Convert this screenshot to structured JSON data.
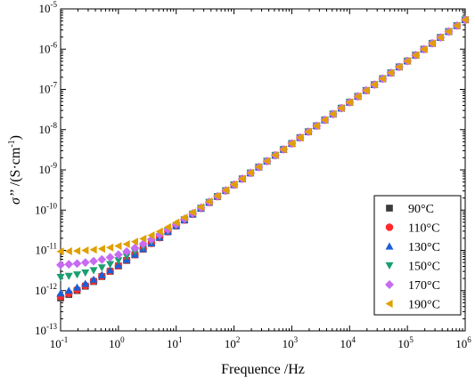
{
  "chart_data": {
    "type": "scatter",
    "x_scale": "log",
    "y_scale": "log",
    "xlabel": "Frequence /Hz",
    "ylabel": {
      "main": "σ’’",
      "unit": "/(S·cm",
      "unit_exp": "-1",
      "unit_close": ")"
    },
    "xlim": [
      0.1,
      1000000
    ],
    "ylim": [
      1e-13,
      1e-05
    ],
    "x_ticks": [
      {
        "base": "10",
        "exp": "-1"
      },
      {
        "base": "10",
        "exp": "0"
      },
      {
        "base": "10",
        "exp": "1"
      },
      {
        "base": "10",
        "exp": "2"
      },
      {
        "base": "10",
        "exp": "3"
      },
      {
        "base": "10",
        "exp": "4"
      },
      {
        "base": "10",
        "exp": "5"
      },
      {
        "base": "10",
        "exp": "6"
      }
    ],
    "y_ticks": [
      {
        "base": "10",
        "exp": "-13"
      },
      {
        "base": "10",
        "exp": "-12"
      },
      {
        "base": "10",
        "exp": "-11"
      },
      {
        "base": "10",
        "exp": "-10"
      },
      {
        "base": "10",
        "exp": "-9"
      },
      {
        "base": "10",
        "exp": "-8"
      },
      {
        "base": "10",
        "exp": "-7"
      },
      {
        "base": "10",
        "exp": "-6"
      },
      {
        "base": "10",
        "exp": "-5"
      }
    ],
    "legend_position": "bottom-right",
    "grid": false,
    "series": [
      {
        "name": "90°C",
        "marker": "square",
        "color": "#3a3a3a",
        "low_freq_plateau": 3e-13
      },
      {
        "name": "110°C",
        "marker": "circle",
        "color": "#ff2a2a",
        "low_freq_plateau": 3.5e-13
      },
      {
        "name": "130°C",
        "marker": "triangle-up",
        "color": "#1a5fd6",
        "low_freq_plateau": 5e-13
      },
      {
        "name": "150°C",
        "marker": "triangle-down",
        "color": "#1aa070",
        "low_freq_plateau": 1.8e-12
      },
      {
        "name": "170°C",
        "marker": "diamond",
        "color": "#c86bf0",
        "low_freq_plateau": 4e-12
      },
      {
        "name": "190°C",
        "marker": "triangle-left",
        "color": "#e0a000",
        "low_freq_plateau": 9e-12
      }
    ],
    "points_per_decade": 7,
    "data_trend": "sigma = plateau + 3.8e-12 * f^1.025 ; plateau values above; higher-temperature series flatten at low frequency, all collapse onto one power law above ~10 Hz to ~2.3e-6 S/cm at 1e6 Hz"
  }
}
